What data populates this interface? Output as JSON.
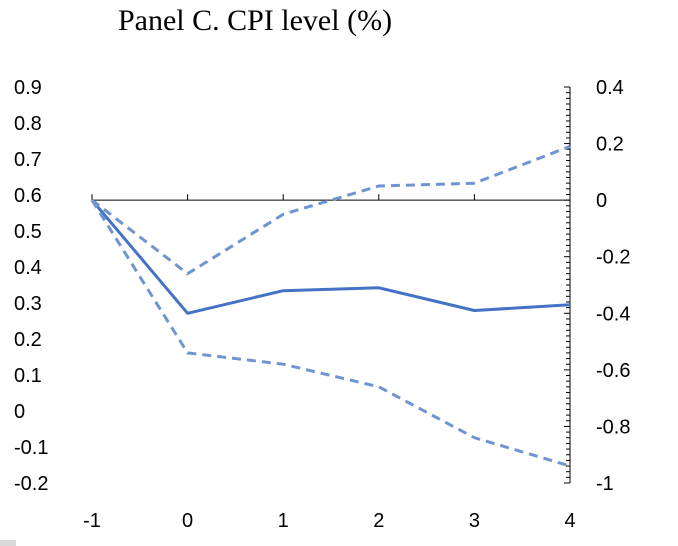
{
  "chart_data": {
    "type": "line",
    "title": "Panel C. CPI level (%)",
    "xlabel": "",
    "ylabel": "",
    "x": [
      -1,
      0,
      1,
      2,
      3,
      4
    ],
    "x_tick_labels": [
      "-1",
      "0",
      "1",
      "2",
      "3",
      "4"
    ],
    "y_right_lim": [
      -1,
      0.4
    ],
    "y_right_ticks": [
      0.4,
      0.2,
      0,
      -0.2,
      -0.4,
      -0.6,
      -0.8,
      -1
    ],
    "y_right_tick_labels": [
      "0.4",
      "0.2",
      "0",
      "-0.2",
      "-0.4",
      "-0.6",
      "-0.8",
      "-1"
    ],
    "y_left_lim": [
      -0.2,
      0.9
    ],
    "y_left_ticks": [
      0.9,
      0.8,
      0.7,
      0.6,
      0.5,
      0.4,
      0.3,
      0.2,
      0.1,
      0,
      -0.1,
      -0.2
    ],
    "y_left_tick_labels": [
      "0.9",
      "0.8",
      "0.7",
      "0.6",
      "0.5",
      "0.4",
      "0.3",
      "0.2",
      "0.1",
      "0",
      "-0.1",
      "-0.2"
    ],
    "series": [
      {
        "values": [
          0,
          -0.4,
          -0.32,
          -0.31,
          -0.39,
          -0.37
        ],
        "style": "solid",
        "color": "#4472c4"
      },
      {
        "values": [
          0,
          -0.26,
          -0.05,
          0.05,
          0.06,
          0.19
        ],
        "style": "dashed",
        "color": "#6f95d0"
      },
      {
        "values": [
          0,
          -0.54,
          -0.58,
          -0.66,
          -0.84,
          -0.94
        ],
        "style": "dashed",
        "color": "#6f95d0"
      }
    ],
    "grid": false,
    "legend": "none"
  }
}
